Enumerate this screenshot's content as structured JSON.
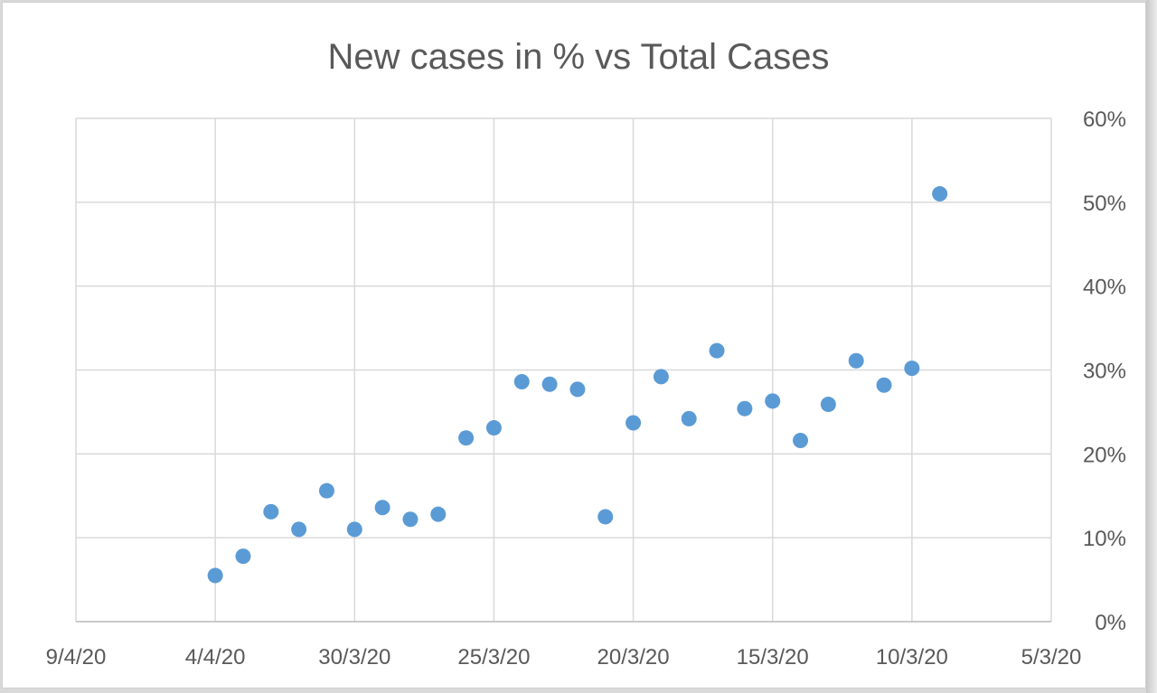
{
  "chart_data": {
    "type": "scatter",
    "title": "New cases in % vs Total Cases",
    "xlabel": "",
    "ylabel": "",
    "x_axis": {
      "type": "date",
      "reversed": true,
      "range": [
        "2020-04-09",
        "2020-03-05"
      ],
      "tick_labels": [
        "9/4/20",
        "4/4/20",
        "30/3/20",
        "25/3/20",
        "20/3/20",
        "15/3/20",
        "10/3/20",
        "5/3/20"
      ],
      "gridlines": true
    },
    "y_axis": {
      "position": "right",
      "unit": "percent",
      "range": [
        0,
        60
      ],
      "tick_labels": [
        "0%",
        "10%",
        "20%",
        "30%",
        "40%",
        "50%",
        "60%"
      ],
      "gridlines": true
    },
    "legend": "none",
    "marker_color": "#5b9bd5",
    "points": [
      {
        "x": "2020-04-04",
        "y": 5.5
      },
      {
        "x": "2020-04-03",
        "y": 7.8
      },
      {
        "x": "2020-04-02",
        "y": 13.1
      },
      {
        "x": "2020-04-01",
        "y": 11.0
      },
      {
        "x": "2020-03-31",
        "y": 15.6
      },
      {
        "x": "2020-03-30",
        "y": 11.0
      },
      {
        "x": "2020-03-29",
        "y": 13.6
      },
      {
        "x": "2020-03-28",
        "y": 12.2
      },
      {
        "x": "2020-03-27",
        "y": 12.8
      },
      {
        "x": "2020-03-26",
        "y": 21.9
      },
      {
        "x": "2020-03-25",
        "y": 23.1
      },
      {
        "x": "2020-03-24",
        "y": 28.6
      },
      {
        "x": "2020-03-23",
        "y": 28.3
      },
      {
        "x": "2020-03-22",
        "y": 27.7
      },
      {
        "x": "2020-03-21",
        "y": 12.5
      },
      {
        "x": "2020-03-20",
        "y": 23.7
      },
      {
        "x": "2020-03-19",
        "y": 29.2
      },
      {
        "x": "2020-03-18",
        "y": 24.2
      },
      {
        "x": "2020-03-17",
        "y": 32.3
      },
      {
        "x": "2020-03-16",
        "y": 25.4
      },
      {
        "x": "2020-03-15",
        "y": 26.3
      },
      {
        "x": "2020-03-14",
        "y": 21.6
      },
      {
        "x": "2020-03-13",
        "y": 25.9
      },
      {
        "x": "2020-03-12",
        "y": 31.1
      },
      {
        "x": "2020-03-11",
        "y": 28.2
      },
      {
        "x": "2020-03-10",
        "y": 30.2
      },
      {
        "x": "2020-03-09",
        "y": 51.0
      }
    ]
  }
}
